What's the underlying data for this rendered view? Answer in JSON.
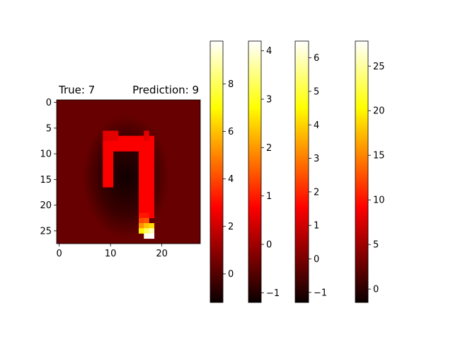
{
  "title_left": "True: 7",
  "title_right": "Prediction: 9",
  "colormap": "hot",
  "chart_data": [
    {
      "type": "heatmap",
      "xlim": [
        -0.5,
        27.5
      ],
      "ylim": [
        27.5,
        -0.5
      ],
      "x_ticks": [
        0,
        10,
        20
      ],
      "y_ticks": [
        0,
        5,
        10,
        15,
        20,
        25
      ],
      "background_value": 0.25,
      "strokes": [
        {
          "name": "top-bar",
          "rows": [
            7,
            9
          ],
          "cols": [
            9,
            18
          ],
          "value": 2.6
        },
        {
          "name": "left-stem",
          "rows": [
            7,
            16
          ],
          "cols": [
            9,
            10
          ],
          "value": 2.6
        },
        {
          "name": "right-stem",
          "rows": [
            7,
            22
          ],
          "cols": [
            16,
            18
          ],
          "value": 2.6
        },
        {
          "name": "hook-top",
          "rows": [
            6,
            7
          ],
          "cols": [
            9,
            11
          ],
          "value": 2.2
        },
        {
          "name": "hook-right",
          "rows": [
            6,
            7
          ],
          "cols": [
            17,
            17
          ],
          "value": 2.2
        }
      ],
      "hot_pixels": [
        {
          "row": 22,
          "col": 16,
          "value": 3.2
        },
        {
          "row": 22,
          "col": 17,
          "value": 3.2
        },
        {
          "row": 23,
          "col": 16,
          "value": 4.0
        },
        {
          "row": 23,
          "col": 17,
          "value": 4.2
        },
        {
          "row": 24,
          "col": 16,
          "value": 5.2
        },
        {
          "row": 24,
          "col": 17,
          "value": 6.0
        },
        {
          "row": 24,
          "col": 18,
          "value": 6.4
        },
        {
          "row": 25,
          "col": 16,
          "value": 6.8
        },
        {
          "row": 25,
          "col": 17,
          "value": 8.0
        },
        {
          "row": 25,
          "col": 18,
          "value": 9.0
        },
        {
          "row": 26,
          "col": 17,
          "value": 9.6
        },
        {
          "row": 26,
          "col": 18,
          "value": 9.8
        }
      ]
    },
    {
      "type": "colorbar",
      "vmin": -1.2,
      "vmax": 9.8,
      "ticks": [
        0,
        2,
        4,
        6,
        8
      ],
      "ylim": [
        -1.2,
        9.8
      ]
    },
    {
      "type": "colorbar",
      "vmin": -1.2,
      "vmax": 4.2,
      "ticks": [
        -1,
        0,
        1,
        2,
        3,
        4
      ],
      "ylim": [
        -1.2,
        4.2
      ]
    },
    {
      "type": "colorbar",
      "vmin": -1.3,
      "vmax": 6.5,
      "ticks": [
        -1,
        0,
        1,
        2,
        3,
        4,
        5,
        6
      ],
      "ylim": [
        -1.3,
        6.5
      ]
    },
    {
      "type": "colorbar",
      "vmin": -1.5,
      "vmax": 27.8,
      "ticks": [
        0,
        5,
        10,
        15,
        20,
        25
      ],
      "ylim": [
        -1.5,
        27.8
      ]
    }
  ]
}
